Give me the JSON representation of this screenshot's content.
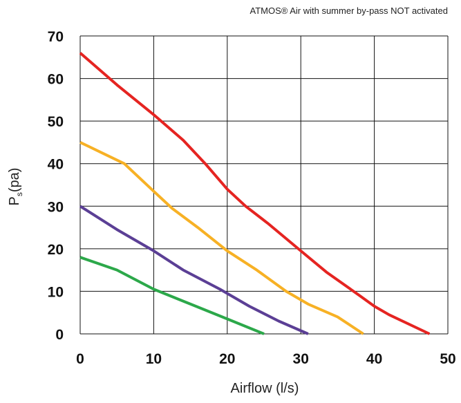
{
  "chart_data": {
    "type": "line",
    "title": "ATMOS® Air with summer by-pass NOT activated",
    "xlabel": "Airflow (l/s)",
    "ylabel_main": "P",
    "ylabel_sub": "s",
    "ylabel_unit": "(pa)",
    "xlim": [
      0,
      50
    ],
    "ylim": [
      0,
      70
    ],
    "x_ticks": [
      "0",
      "10",
      "20",
      "30",
      "40",
      "50"
    ],
    "y_ticks": [
      "0",
      "10",
      "20",
      "30",
      "40",
      "50",
      "60",
      "70"
    ],
    "grid": true,
    "series": [
      {
        "color": "#e52421",
        "points": [
          [
            0,
            66
          ],
          [
            5,
            58.5
          ],
          [
            10,
            51.5
          ],
          [
            14,
            45.5
          ],
          [
            17,
            40
          ],
          [
            20,
            34
          ],
          [
            22.5,
            30
          ],
          [
            25.5,
            26
          ],
          [
            30,
            19.5
          ],
          [
            33.5,
            14.5
          ],
          [
            38,
            9
          ],
          [
            40,
            6.5
          ],
          [
            42,
            4.5
          ],
          [
            47.5,
            0
          ]
        ]
      },
      {
        "color": "#f7b125",
        "points": [
          [
            0,
            45
          ],
          [
            3,
            42.5
          ],
          [
            6,
            40
          ],
          [
            10,
            33.5
          ],
          [
            12.5,
            29.5
          ],
          [
            16,
            25
          ],
          [
            20,
            19.5
          ],
          [
            24,
            15
          ],
          [
            28,
            10
          ],
          [
            31,
            7
          ],
          [
            35,
            4
          ],
          [
            38.5,
            0
          ]
        ]
      },
      {
        "color": "#5b3f95",
        "points": [
          [
            0,
            30
          ],
          [
            5,
            24.5
          ],
          [
            10,
            19.5
          ],
          [
            14,
            15
          ],
          [
            19,
            10.5
          ],
          [
            23,
            6.5
          ],
          [
            27,
            3
          ],
          [
            31,
            0
          ]
        ]
      },
      {
        "color": "#2ca84a",
        "points": [
          [
            0,
            18
          ],
          [
            5,
            15
          ],
          [
            10,
            10.5
          ],
          [
            15,
            7
          ],
          [
            20,
            3.5
          ],
          [
            25,
            0
          ]
        ]
      }
    ]
  }
}
